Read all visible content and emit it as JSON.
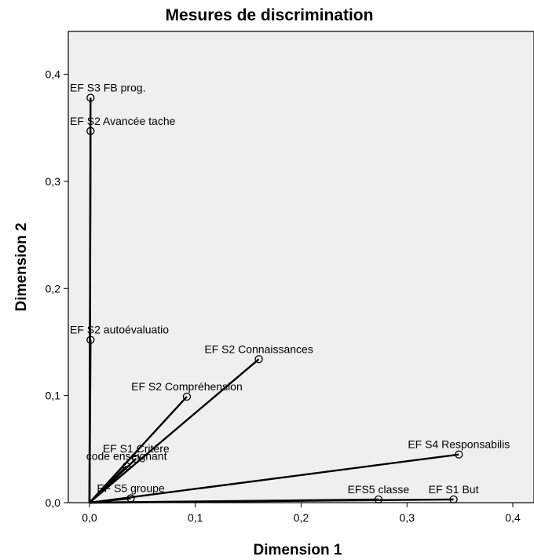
{
  "chart_data": {
    "type": "scatter",
    "title": "Mesures de discrimination",
    "xlabel": "Dimension 1",
    "ylabel": "Dimension 2",
    "xlim": [
      -0.02,
      0.42
    ],
    "ylim": [
      0.0,
      0.44
    ],
    "xticks": [
      "0,0",
      "0,1",
      "0,2",
      "0,3",
      "0,4"
    ],
    "yticks": [
      "0,0",
      "0,1",
      "0,2",
      "0,3",
      "0,4"
    ],
    "xtick_values": [
      0.0,
      0.1,
      0.2,
      0.3,
      0.4
    ],
    "ytick_values": [
      0.0,
      0.1,
      0.2,
      0.3,
      0.4
    ],
    "grid": false,
    "vectors_from_origin": true,
    "background": "#efefef",
    "line_color": "#000000",
    "points": [
      {
        "label": "EF S3 FB prog.",
        "x": 0.001,
        "y": 0.378
      },
      {
        "label": "EF S2 Avancée tache",
        "x": 0.001,
        "y": 0.347
      },
      {
        "label": "EF S2 autoévaluatio",
        "x": 0.001,
        "y": 0.152
      },
      {
        "label": "EF S2 Connaissances",
        "x": 0.16,
        "y": 0.134
      },
      {
        "label": "EF S2 Compréhension",
        "x": 0.092,
        "y": 0.099
      },
      {
        "label": "EF S1 Critère",
        "x": 0.044,
        "y": 0.041
      },
      {
        "label": "code enseignant",
        "x": 0.035,
        "y": 0.034
      },
      {
        "label": "EF S5 groupe",
        "x": 0.039,
        "y": 0.004
      },
      {
        "label": "EF S4 Responsabilis",
        "x": 0.349,
        "y": 0.045
      },
      {
        "label": "EFS5 classe",
        "x": 0.273,
        "y": 0.003
      },
      {
        "label": "EF S1 But",
        "x": 0.344,
        "y": 0.003
      }
    ]
  }
}
